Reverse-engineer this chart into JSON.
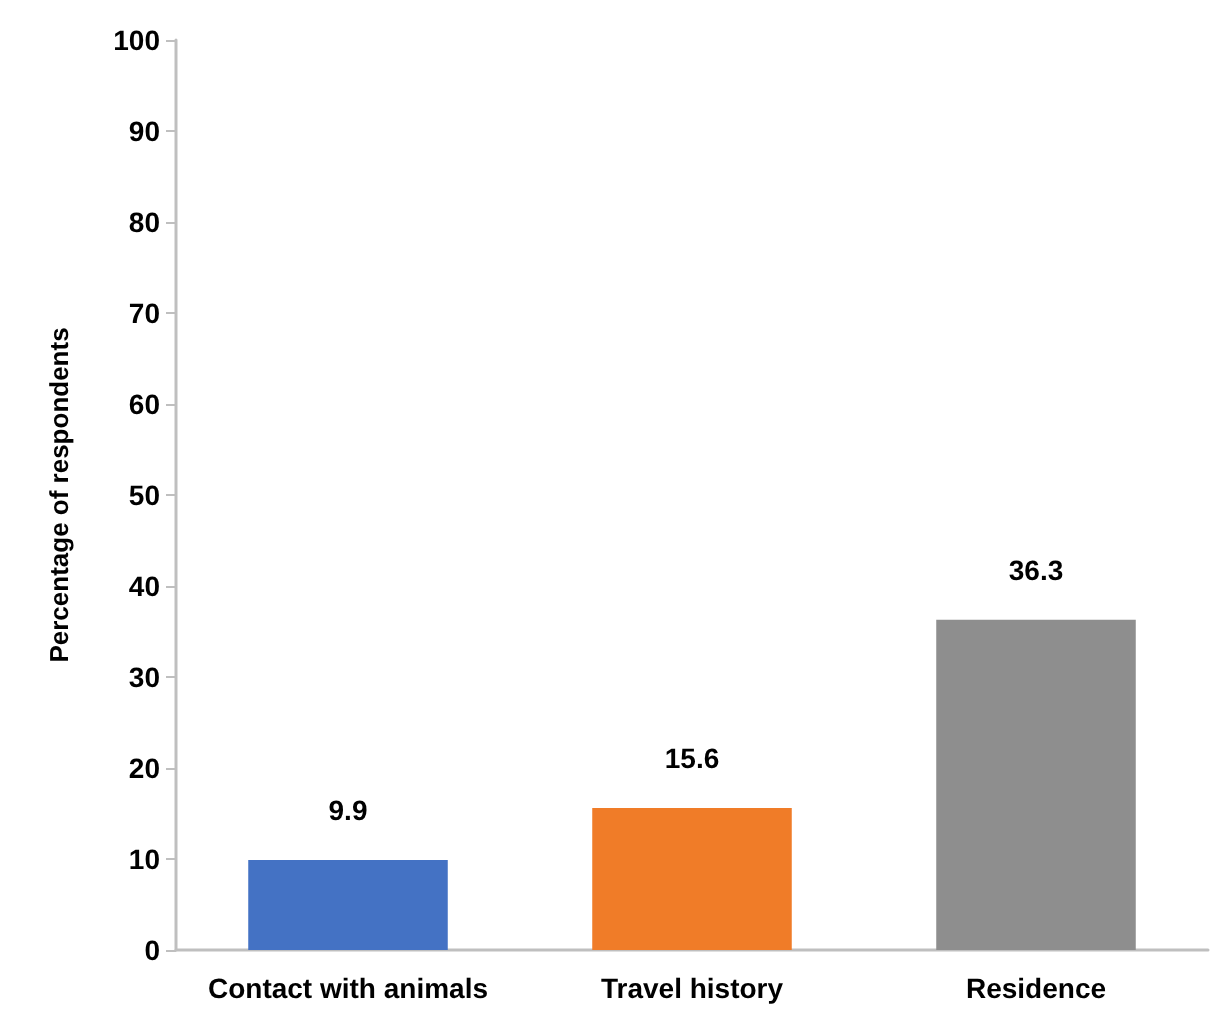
{
  "chart_data": {
    "type": "bar",
    "ylabel": "Percentage of respondents",
    "categories": [
      "Contact with animals",
      "Travel history",
      "Residence"
    ],
    "values": [
      9.9,
      15.6,
      36.3
    ],
    "colors": [
      "#4472c4",
      "#f07c28",
      "#8e8e8e"
    ],
    "ylim": [
      0,
      100
    ],
    "yticks": [
      0,
      10,
      20,
      30,
      40,
      50,
      60,
      70,
      80,
      90,
      100
    ],
    "grid": false,
    "data_labels": true
  }
}
